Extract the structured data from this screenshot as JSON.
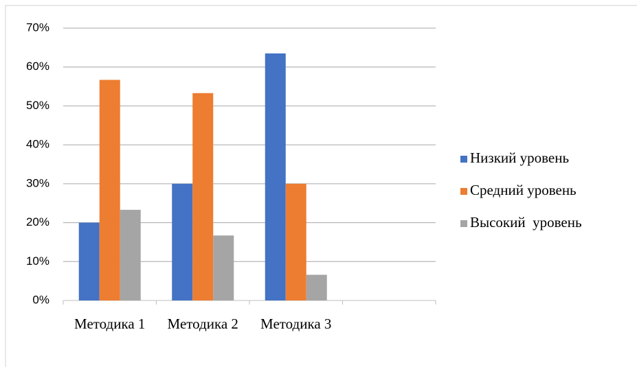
{
  "chart_data": {
    "type": "bar",
    "categories": [
      "Методика 1",
      "Методика 2",
      "Методика 3",
      null
    ],
    "series": [
      {
        "name": "Низкий уровень",
        "color": "#4472c4",
        "values": [
          20,
          30,
          63.5,
          null
        ]
      },
      {
        "name": "Средний уровень",
        "color": "#ed7d31",
        "values": [
          56.7,
          53.3,
          30,
          null
        ]
      },
      {
        "name": "Высокий  уровень",
        "color": "#a5a5a5",
        "values": [
          23.3,
          16.7,
          6.6,
          null
        ]
      }
    ],
    "ylim": [
      0,
      70
    ],
    "yticks": [
      {
        "value": 0,
        "label": "0%"
      },
      {
        "value": 10,
        "label": "10%"
      },
      {
        "value": 20,
        "label": "20%"
      },
      {
        "value": 30,
        "label": "30%"
      },
      {
        "value": 40,
        "label": "40%"
      },
      {
        "value": 50,
        "label": "50%"
      },
      {
        "value": 60,
        "label": "60%"
      },
      {
        "value": 70,
        "label": "70%"
      }
    ],
    "grid": true,
    "legend": "right"
  }
}
